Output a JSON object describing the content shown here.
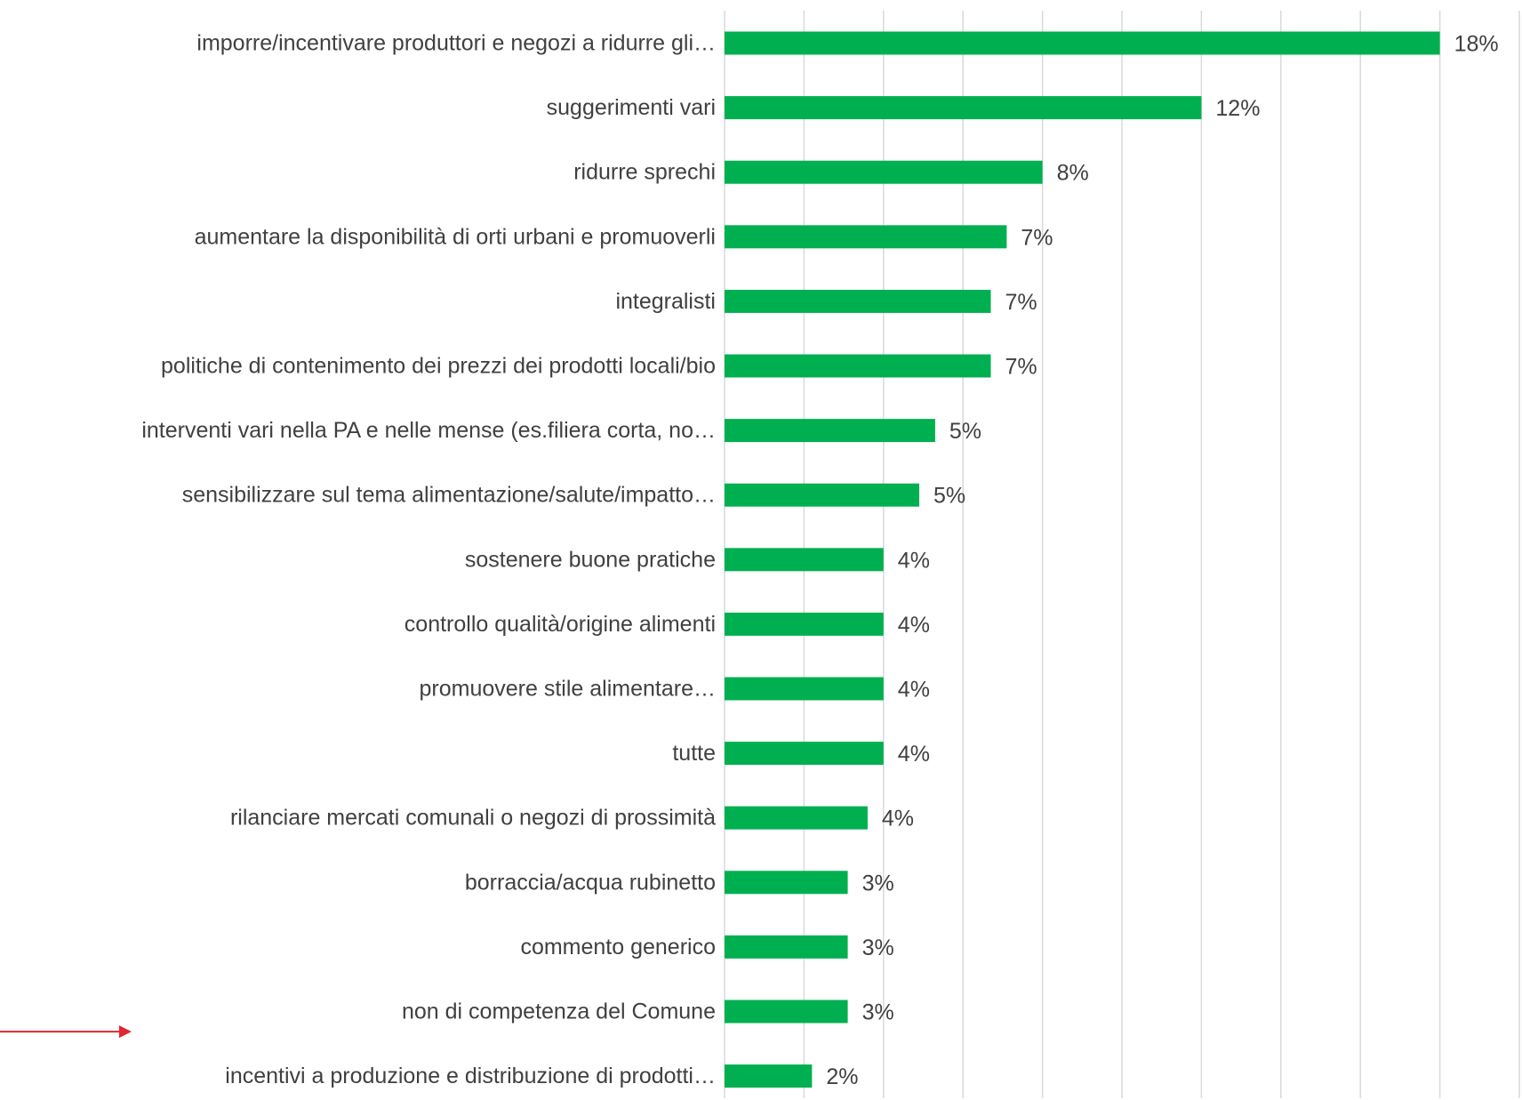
{
  "chart_data": {
    "type": "bar",
    "orientation": "horizontal",
    "title": "",
    "xlabel": "",
    "ylabel": "",
    "xlim": [
      0,
      20
    ],
    "grid": true,
    "legend": "none",
    "bar_color": "#00b050",
    "annotation_arrow_color": "#e0262f",
    "categories": [
      "imporre/incentivare produttori e negozi a ridurre gli…",
      "suggerimenti vari",
      "ridurre sprechi",
      "aumentare la disponibilità di orti urbani e promuoverli",
      "integralisti",
      "politiche di contenimento dei prezzi dei prodotti locali/bio",
      "interventi vari nella PA e nelle mense (es.filiera corta, no…",
      "sensibilizzare sul tema alimentazione/salute/impatto…",
      "sostenere buone pratiche",
      "controllo qualità/origine alimenti",
      "promuovere stile alimentare…",
      "tutte",
      "rilanciare mercati comunali o negozi di prossimità",
      "borraccia/acqua rubinetto",
      "commento generico",
      "non di competenza del Comune",
      "incentivi a produzione e distribuzione di prodotti…"
    ],
    "values": [
      18,
      12,
      8,
      7.1,
      6.7,
      6.7,
      5.3,
      4.9,
      4,
      4,
      4,
      4,
      3.6,
      3.1,
      3.1,
      3.1,
      2.2
    ],
    "value_labels": [
      "18%",
      "12%",
      "8%",
      "7%",
      "7%",
      "7%",
      "5%",
      "5%",
      "4%",
      "4%",
      "4%",
      "4%",
      "4%",
      "3%",
      "3%",
      "3%",
      "2%"
    ]
  }
}
